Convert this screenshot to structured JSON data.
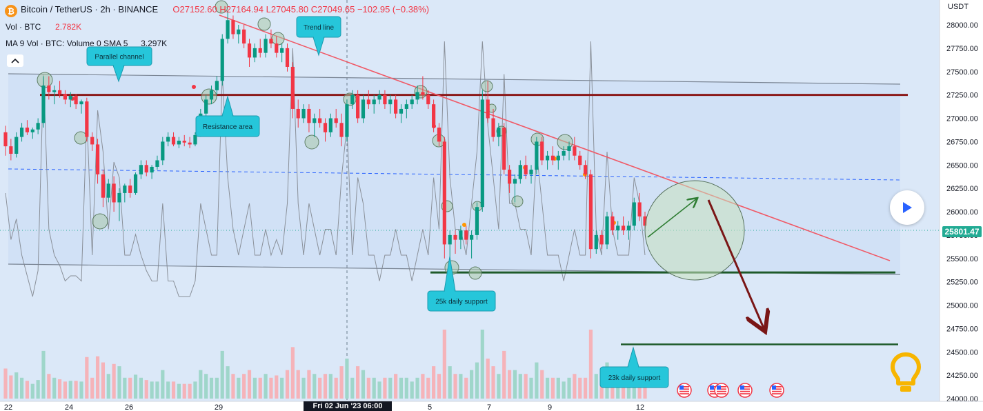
{
  "legend": {
    "symbol": "Bitcoin / TetherUS · 2h · BINANCE",
    "open": "O27152.60",
    "high": "H27164.94",
    "low": "L27045.80",
    "close": "C27049.65",
    "change": "−102.95 (−0.38%)",
    "vol_label": "Vol · BTC",
    "vol_value": "2.782K",
    "ma_label": "MA 9 Vol · BTC: Volume 0 SMA 5",
    "ma_value": "3.297K"
  },
  "price_axis": {
    "currency": "USDT",
    "ticks": [
      "28000.00",
      "27750.00",
      "27500.00",
      "27250.00",
      "27000.00",
      "26750.00",
      "26500.00",
      "26250.00",
      "26000.00",
      "25750.00",
      "25500.00",
      "25250.00",
      "25000.00",
      "24750.00",
      "24500.00",
      "24250.00",
      "24000.00"
    ],
    "last_price": "25801.47"
  },
  "time_axis": {
    "ticks": [
      "22",
      "24",
      "26",
      "29",
      "5",
      "7",
      "9",
      "12"
    ],
    "crosshair_label": "Fri 02 Jun '23   06:00"
  },
  "annotations": {
    "parallel_channel": "Parallel channel",
    "trend_line": "Trend line",
    "resistance_area": "Resistance area",
    "support_25k": "25k daily support",
    "support_23k": "23k daily support"
  },
  "colors": {
    "up": "#089981",
    "down": "#f23645",
    "channel_fill": "#cfe0f5",
    "trend_line": "#f05a67",
    "resistance": "#8b1a1a",
    "support": "#1e5a2a",
    "callout": "#26c6da",
    "last_price": "#22ab94"
  },
  "icons": {
    "logo": "bitcoin-logo-icon",
    "collapse": "chevron-up-icon",
    "play": "play-icon",
    "idea": "lightbulb-icon",
    "events": "us-flag-icon"
  },
  "chart_data": {
    "type": "candlestick",
    "y_range": [
      24000,
      28300
    ],
    "candles": [
      [
        26850,
        26920,
        26600,
        26700
      ],
      [
        26700,
        26780,
        26550,
        26620
      ],
      [
        26620,
        26850,
        26580,
        26800
      ],
      [
        26800,
        26950,
        26750,
        26900
      ],
      [
        26900,
        26980,
        26820,
        26850
      ],
      [
        26850,
        26900,
        26780,
        26880
      ],
      [
        26880,
        27000,
        26830,
        26950
      ],
      [
        26950,
        27450,
        26900,
        27350
      ],
      [
        27350,
        27450,
        27200,
        27280
      ],
      [
        27280,
        27350,
        27150,
        27300
      ],
      [
        27300,
        27400,
        27220,
        27260
      ],
      [
        27260,
        27300,
        27150,
        27200
      ],
      [
        27200,
        27280,
        27120,
        27240
      ],
      [
        27240,
        27260,
        27100,
        27150
      ],
      [
        27150,
        27200,
        27050,
        27180
      ],
      [
        27180,
        27220,
        26750,
        26800
      ],
      [
        26800,
        26850,
        26650,
        26720
      ],
      [
        26720,
        26780,
        26300,
        26400
      ],
      [
        26400,
        26450,
        26050,
        26150
      ],
      [
        26150,
        26350,
        26100,
        26300
      ],
      [
        26300,
        26380,
        26000,
        26100
      ],
      [
        26100,
        26250,
        25900,
        26200
      ],
      [
        26200,
        26300,
        26100,
        26280
      ],
      [
        26280,
        26350,
        26150,
        26200
      ],
      [
        26200,
        26420,
        26180,
        26400
      ],
      [
        26400,
        26550,
        26350,
        26500
      ],
      [
        26500,
        26550,
        26380,
        26420
      ],
      [
        26420,
        26500,
        26350,
        26480
      ],
      [
        26480,
        26600,
        26450,
        26550
      ],
      [
        26550,
        26800,
        26500,
        26750
      ],
      [
        26750,
        26850,
        26700,
        26800
      ],
      [
        26800,
        26850,
        26700,
        26720
      ],
      [
        26720,
        26800,
        26680,
        26760
      ],
      [
        26760,
        26820,
        26700,
        26740
      ],
      [
        26740,
        26800,
        26680,
        26720
      ],
      [
        26720,
        26850,
        26700,
        26820
      ],
      [
        26820,
        27100,
        26800,
        27050
      ],
      [
        27050,
        27250,
        27000,
        27200
      ],
      [
        27200,
        27350,
        27150,
        27300
      ],
      [
        27300,
        27450,
        27250,
        27400
      ],
      [
        27400,
        27900,
        27350,
        27850
      ],
      [
        27850,
        28150,
        27800,
        28050
      ],
      [
        28050,
        28100,
        27850,
        27900
      ],
      [
        27900,
        28000,
        27800,
        27950
      ],
      [
        27950,
        28000,
        27750,
        27800
      ],
      [
        27800,
        27850,
        27550,
        27650
      ],
      [
        27650,
        27800,
        27600,
        27750
      ],
      [
        27750,
        27850,
        27650,
        27700
      ],
      [
        27700,
        27900,
        27650,
        27850
      ],
      [
        27850,
        27950,
        27750,
        27800
      ],
      [
        27800,
        27880,
        27650,
        27700
      ],
      [
        27700,
        27800,
        27600,
        27750
      ],
      [
        27750,
        27800,
        27500,
        27550
      ],
      [
        27550,
        27600,
        27000,
        27100
      ],
      [
        27100,
        27200,
        26900,
        27000
      ],
      [
        27000,
        27150,
        26950,
        27100
      ],
      [
        27100,
        27150,
        26850,
        26950
      ],
      [
        26950,
        27050,
        26800,
        27000
      ],
      [
        27000,
        27100,
        26900,
        26950
      ],
      [
        26950,
        27000,
        26750,
        26850
      ],
      [
        26850,
        27050,
        26800,
        27000
      ],
      [
        27000,
        27100,
        26900,
        26950
      ],
      [
        26950,
        27050,
        26700,
        26800
      ],
      [
        26800,
        27200,
        26750,
        27150
      ],
      [
        27150,
        27300,
        27100,
        27250
      ],
      [
        27250,
        27300,
        26950,
        27000
      ],
      [
        27000,
        27250,
        26950,
        27200
      ],
      [
        27200,
        27300,
        27100,
        27150
      ],
      [
        27150,
        27250,
        27050,
        27200
      ],
      [
        27200,
        27300,
        27150,
        27250
      ],
      [
        27250,
        27300,
        27100,
        27150
      ],
      [
        27150,
        27250,
        27050,
        27200
      ],
      [
        27200,
        27250,
        27000,
        27050
      ],
      [
        27050,
        27150,
        26950,
        27100
      ],
      [
        27100,
        27200,
        27000,
        27150
      ],
      [
        27150,
        27250,
        27100,
        27200
      ],
      [
        27200,
        27350,
        27150,
        27280
      ],
      [
        27280,
        27450,
        27200,
        27250
      ],
      [
        27250,
        27300,
        27100,
        27150
      ],
      [
        27150,
        27200,
        26850,
        26900
      ],
      [
        26900,
        26950,
        26700,
        26750
      ],
      [
        26750,
        26800,
        25500,
        25650
      ],
      [
        25650,
        25800,
        25450,
        25750
      ],
      [
        25750,
        25800,
        25550,
        25700
      ],
      [
        25700,
        25850,
        25600,
        25800
      ],
      [
        25800,
        25850,
        25650,
        25700
      ],
      [
        25700,
        25800,
        25500,
        25750
      ],
      [
        25750,
        26100,
        25700,
        26050
      ],
      [
        26050,
        27300,
        26000,
        27200
      ],
      [
        27200,
        27400,
        26950,
        27000
      ],
      [
        27000,
        27100,
        26750,
        26800
      ],
      [
        26800,
        26950,
        26700,
        26900
      ],
      [
        26900,
        26950,
        26400,
        26450
      ],
      [
        26450,
        26500,
        26200,
        26300
      ],
      [
        26300,
        26400,
        26100,
        26350
      ],
      [
        26350,
        26550,
        26300,
        26500
      ],
      [
        26500,
        26600,
        26350,
        26400
      ],
      [
        26400,
        26500,
        26300,
        26450
      ],
      [
        26450,
        26800,
        26400,
        26750
      ],
      [
        26750,
        26800,
        26500,
        26550
      ],
      [
        26550,
        26650,
        26450,
        26600
      ],
      [
        26600,
        26700,
        26500,
        26550
      ],
      [
        26550,
        26650,
        26450,
        26600
      ],
      [
        26600,
        26700,
        26550,
        26650
      ],
      [
        26650,
        26750,
        26550,
        26700
      ],
      [
        26700,
        26800,
        26550,
        26600
      ],
      [
        26600,
        26650,
        26450,
        26500
      ],
      [
        26500,
        26550,
        26350,
        26400
      ],
      [
        26400,
        26450,
        25500,
        25600
      ],
      [
        25600,
        25800,
        25550,
        25750
      ],
      [
        25750,
        25800,
        25600,
        25650
      ],
      [
        25650,
        26000,
        25600,
        25950
      ],
      [
        25950,
        26000,
        25750,
        25800
      ],
      [
        25800,
        25900,
        25700,
        25850
      ],
      [
        25850,
        25950,
        25750,
        25800
      ],
      [
        25800,
        25900,
        25700,
        25850
      ],
      [
        25850,
        26150,
        25800,
        26100
      ],
      [
        26100,
        26200,
        25900,
        25950
      ],
      [
        25950,
        26000,
        25800,
        25850
      ]
    ],
    "series_volume_ma": "MA 9 Vol · BTC",
    "levels": [
      {
        "label": "Resistance area",
        "price": 27250
      },
      {
        "label": "25k daily support",
        "price": 25350
      },
      {
        "label": "23k daily support",
        "price": 24580
      }
    ],
    "trend_line": {
      "label": "Trend line"
    },
    "channel": {
      "label": "Parallel channel"
    },
    "ylabel": "USDT"
  }
}
